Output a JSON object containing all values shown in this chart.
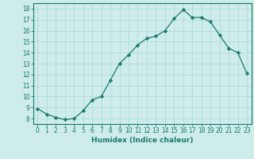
{
  "x": [
    0,
    1,
    2,
    3,
    4,
    5,
    6,
    7,
    8,
    9,
    10,
    11,
    12,
    13,
    14,
    15,
    16,
    17,
    18,
    19,
    20,
    21,
    22,
    23
  ],
  "y": [
    8.9,
    8.4,
    8.1,
    7.9,
    8.0,
    8.7,
    9.7,
    10.0,
    11.5,
    13.0,
    13.8,
    14.7,
    15.3,
    15.5,
    16.0,
    17.1,
    17.9,
    17.2,
    17.2,
    16.8,
    15.6,
    14.4,
    14.0,
    12.1
  ],
  "xlabel": "Humidex (Indice chaleur)",
  "line_color": "#1a7a6e",
  "marker": "D",
  "marker_size": 2.2,
  "bg_color": "#ceecea",
  "grid_color": "#aad8d4",
  "xlim": [
    -0.5,
    23.5
  ],
  "ylim": [
    7.5,
    18.5
  ],
  "yticks": [
    8,
    9,
    10,
    11,
    12,
    13,
    14,
    15,
    16,
    17,
    18
  ],
  "xticks": [
    0,
    1,
    2,
    3,
    4,
    5,
    6,
    7,
    8,
    9,
    10,
    11,
    12,
    13,
    14,
    15,
    16,
    17,
    18,
    19,
    20,
    21,
    22,
    23
  ],
  "tick_fontsize": 5.5,
  "xlabel_fontsize": 6.5
}
